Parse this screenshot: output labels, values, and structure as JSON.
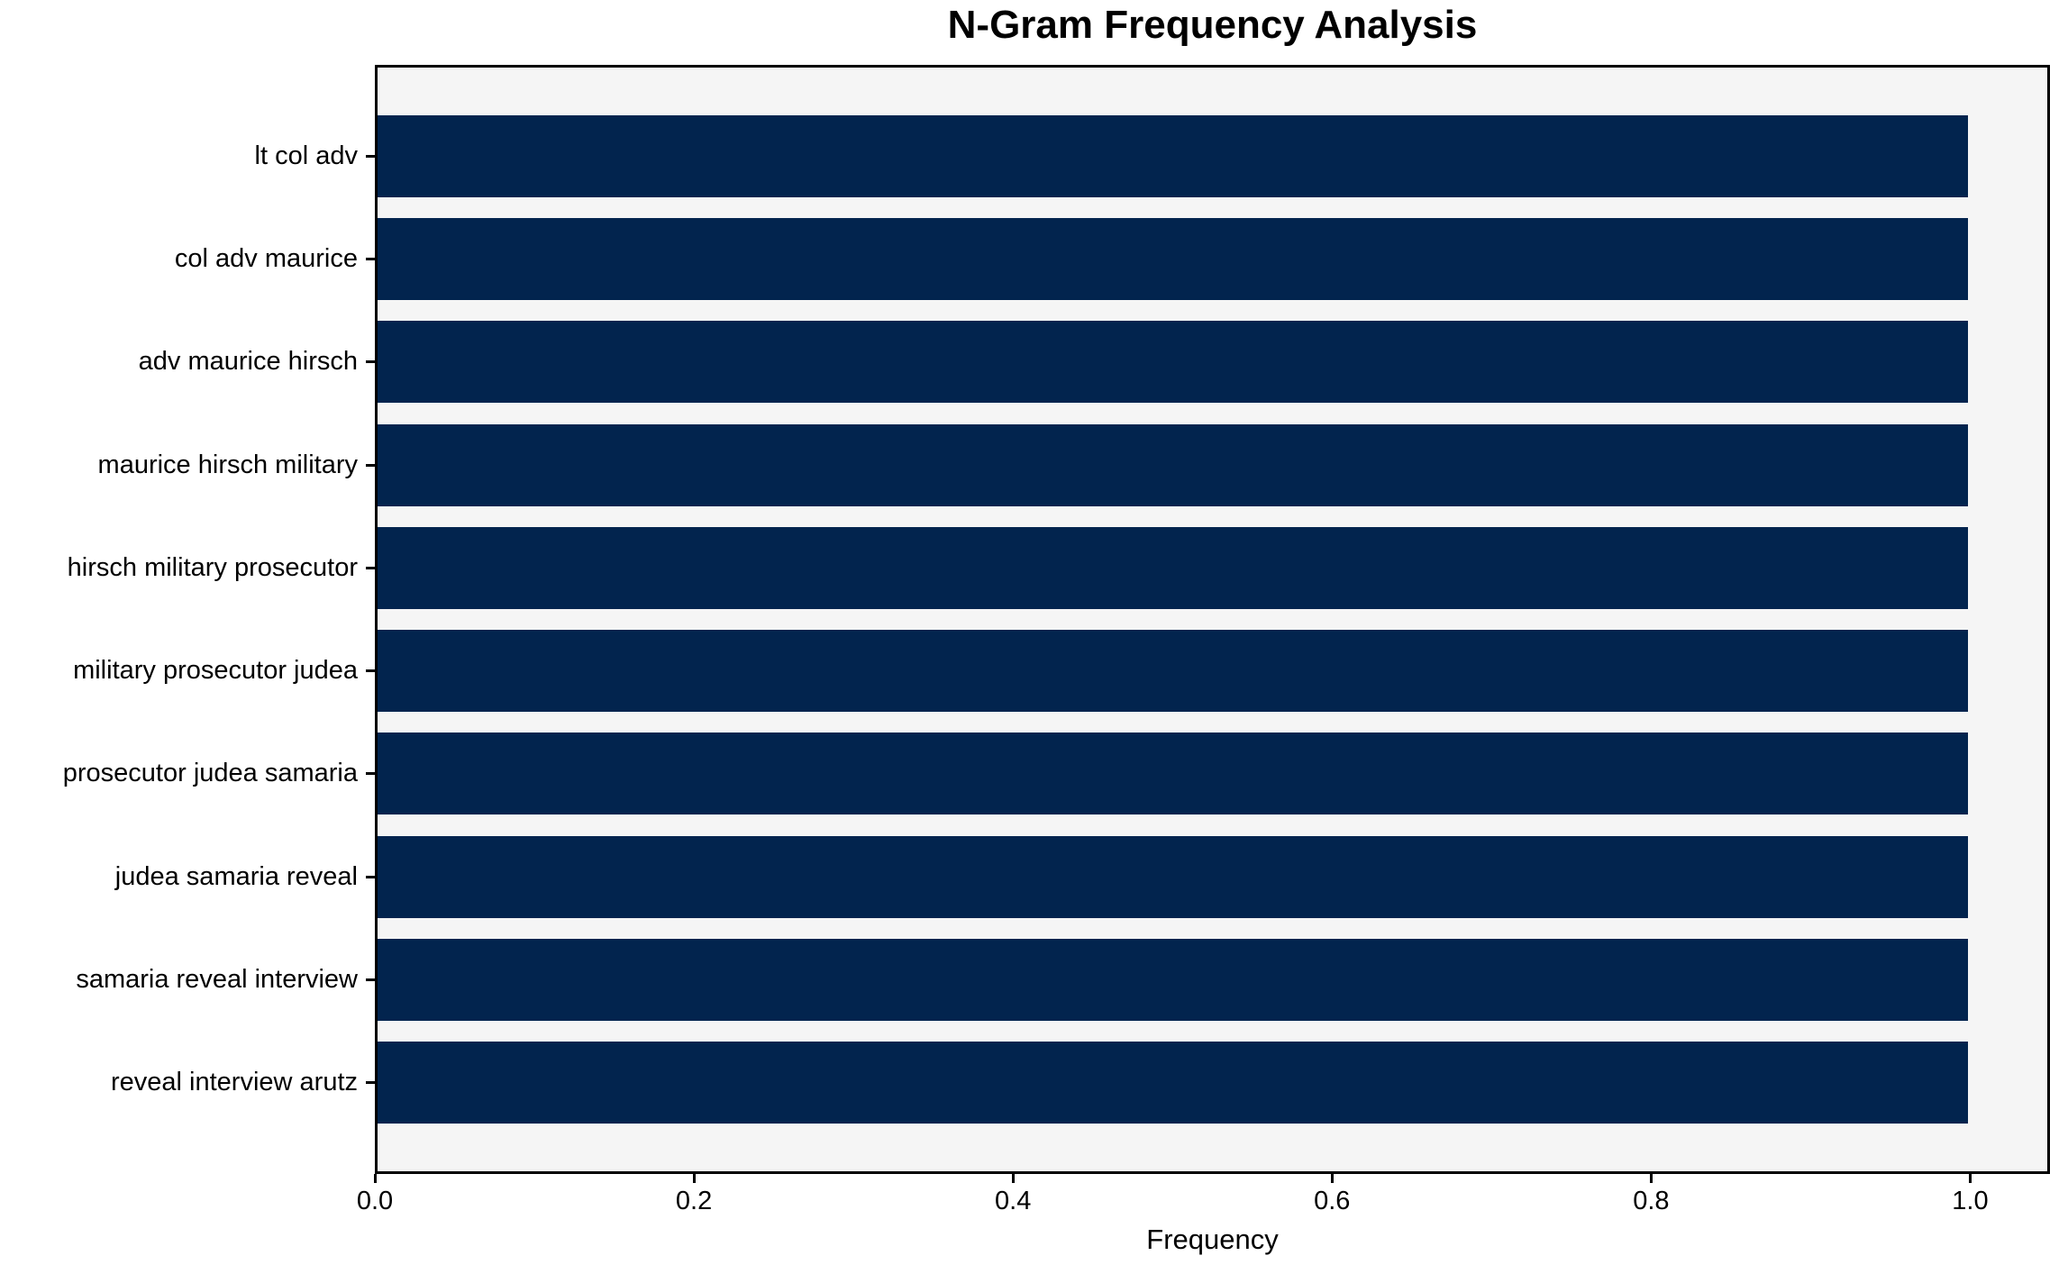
{
  "chart_data": {
    "type": "bar",
    "orientation": "horizontal",
    "title": "N-Gram Frequency Analysis",
    "xlabel": "Frequency",
    "ylabel": "",
    "categories": [
      "lt col adv",
      "col adv maurice",
      "adv maurice hirsch",
      "maurice hirsch military",
      "hirsch military prosecutor",
      "military prosecutor judea",
      "prosecutor judea samaria",
      "judea samaria reveal",
      "samaria reveal interview",
      "reveal interview arutz"
    ],
    "values": [
      1.0,
      1.0,
      1.0,
      1.0,
      1.0,
      1.0,
      1.0,
      1.0,
      1.0,
      1.0
    ],
    "xlim": [
      0.0,
      1.05
    ],
    "xticks": [
      0.0,
      0.2,
      0.4,
      0.6,
      0.8,
      1.0
    ],
    "xticklabels": [
      "0.0",
      "0.2",
      "0.4",
      "0.6",
      "0.8",
      "1.0"
    ],
    "grid": false,
    "legend": "none",
    "bar_color": "#02244e",
    "plot_bg": "#f5f5f5",
    "figure_bg": "#ffffff",
    "axis_color": "#000000"
  }
}
